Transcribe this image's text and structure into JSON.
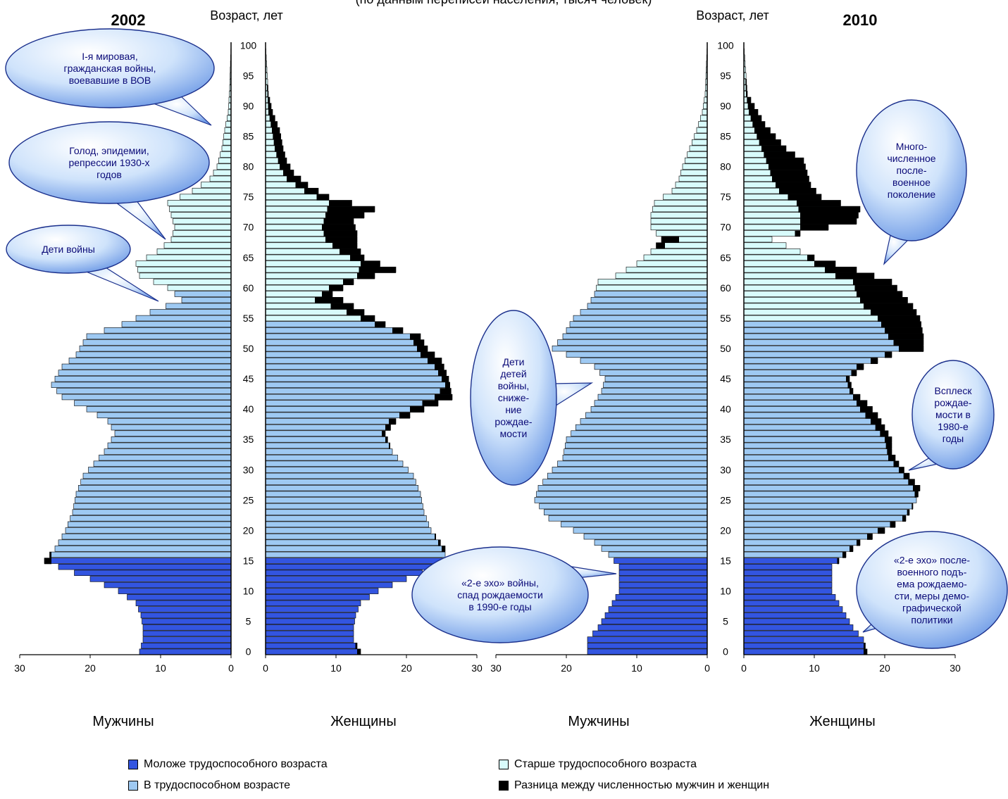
{
  "header": {
    "cropped_title": "(по данным переписей населения, тысяч человек)",
    "year_2002": "2002",
    "year_2010": "2010",
    "age_axis_label": "Возраст, лет"
  },
  "axis_labels": {
    "men": "Мужчины",
    "women": "Женщины"
  },
  "legend": [
    {
      "label": "Моложе трудоспособного возраста",
      "color": "#3355e0"
    },
    {
      "label": "Старше трудоспособного возраста",
      "color": "#d8fbfb"
    },
    {
      "label": "В трудоспособном возрасте",
      "color": "#9ec9f2"
    },
    {
      "label": "Разница между численностью мужчин и женщин",
      "color": "#000000"
    }
  ],
  "callouts": [
    {
      "lines": [
        "I-я мировая,",
        "гражданская войны,",
        "воевавшие в ВОВ"
      ]
    },
    {
      "lines": [
        "Голод, эпидемии,",
        "репрессии 1930-х",
        "годов"
      ]
    },
    {
      "lines": [
        "Дети войны"
      ]
    },
    {
      "lines": [
        "Дети",
        "детей",
        "войны,",
        "сниже-",
        "ние",
        "рождае-",
        "мости"
      ]
    },
    {
      "lines": [
        "«2-е эхо» войны,",
        "спад рождаемости",
        "в 1990-е годы"
      ]
    },
    {
      "lines": [
        "Много-",
        "численное",
        "после-",
        "военное",
        "поколение"
      ]
    },
    {
      "lines": [
        "Всплеск",
        "рождае-",
        "мости в",
        "1980-е",
        "годы"
      ]
    },
    {
      "lines": [
        "«2-е эхо» после-",
        "военного подъ-",
        "ема рождаемо-",
        "сти, меры демо-",
        "графической",
        "политики"
      ]
    }
  ],
  "chart_data": [
    {
      "type": "bar",
      "title": "2002",
      "ylabel": "Возраст, лет",
      "xlim": [
        0,
        30
      ],
      "ylim": [
        0,
        100
      ],
      "y_ticks": [
        0,
        5,
        10,
        15,
        20,
        25,
        30,
        35,
        40,
        45,
        50,
        55,
        60,
        65,
        70,
        75,
        80,
        85,
        90,
        95,
        100
      ],
      "x_ticks": [
        30,
        20,
        10,
        0
      ],
      "women_x_ticks": [
        0,
        10,
        20,
        30
      ],
      "working_age": {
        "men": [
          16,
          59
        ],
        "women": [
          16,
          54
        ]
      },
      "men_anchors": [
        [
          0,
          13
        ],
        [
          2,
          12.5
        ],
        [
          4,
          12.5
        ],
        [
          6,
          12.8
        ],
        [
          8,
          13.5
        ],
        [
          10,
          16
        ],
        [
          12,
          20
        ],
        [
          14,
          24.5
        ],
        [
          15,
          26.5
        ],
        [
          17,
          25
        ],
        [
          20,
          23.5
        ],
        [
          23,
          22.5
        ],
        [
          26,
          22
        ],
        [
          29,
          21
        ],
        [
          31,
          19.5
        ],
        [
          33,
          18
        ],
        [
          36,
          16.5
        ],
        [
          38,
          17.5
        ],
        [
          40,
          20.5
        ],
        [
          42,
          24
        ],
        [
          44,
          25.5
        ],
        [
          47,
          24
        ],
        [
          49,
          22
        ],
        [
          52,
          20.5
        ],
        [
          54,
          15.5
        ],
        [
          56,
          11.5
        ],
        [
          58,
          7
        ],
        [
          60,
          9
        ],
        [
          62,
          13
        ],
        [
          64,
          13.5
        ],
        [
          66,
          10.5
        ],
        [
          68,
          8.5
        ],
        [
          70,
          8
        ],
        [
          72,
          8.5
        ],
        [
          74,
          9
        ],
        [
          76,
          5.5
        ],
        [
          78,
          3
        ],
        [
          80,
          2
        ],
        [
          83,
          1.3
        ],
        [
          86,
          0.9
        ],
        [
          89,
          0.4
        ],
        [
          93,
          0.2
        ],
        [
          100,
          0
        ]
      ],
      "women_anchors": [
        [
          0,
          13.5
        ],
        [
          2,
          12.5
        ],
        [
          4,
          12.5
        ],
        [
          6,
          12.8
        ],
        [
          8,
          13.5
        ],
        [
          10,
          16
        ],
        [
          12,
          20
        ],
        [
          14,
          24.5
        ],
        [
          15,
          25.5
        ],
        [
          17,
          25.5
        ],
        [
          20,
          23.5
        ],
        [
          23,
          22.5
        ],
        [
          26,
          22
        ],
        [
          29,
          21
        ],
        [
          31,
          19.5
        ],
        [
          33,
          18
        ],
        [
          36,
          17
        ],
        [
          38,
          18.5
        ],
        [
          40,
          22.5
        ],
        [
          42,
          26.5
        ],
        [
          45,
          26
        ],
        [
          48,
          25
        ],
        [
          50,
          23
        ],
        [
          52,
          22
        ],
        [
          53,
          19.5
        ],
        [
          54,
          17
        ],
        [
          55,
          15.5
        ],
        [
          57,
          12.5
        ],
        [
          59,
          9.5
        ],
        [
          61,
          12.5
        ],
        [
          63,
          18.5
        ],
        [
          65,
          14
        ],
        [
          67,
          13
        ],
        [
          69,
          13
        ],
        [
          71,
          12.5
        ],
        [
          73,
          15.5
        ],
        [
          75,
          9
        ],
        [
          77,
          6
        ],
        [
          79,
          4
        ],
        [
          81,
          3
        ],
        [
          83,
          2.5
        ],
        [
          86,
          2
        ],
        [
          89,
          1
        ],
        [
          92,
          0.4
        ],
        [
          100,
          0
        ]
      ]
    },
    {
      "type": "bar",
      "title": "2010",
      "ylabel": "Возраст, лет",
      "xlim": [
        0,
        30
      ],
      "ylim": [
        0,
        100
      ],
      "y_ticks": [
        0,
        5,
        10,
        15,
        20,
        25,
        30,
        35,
        40,
        45,
        50,
        55,
        60,
        65,
        70,
        75,
        80,
        85,
        90,
        95,
        100
      ],
      "x_ticks": [
        30,
        20,
        10,
        0
      ],
      "women_x_ticks": [
        0,
        10,
        20,
        30
      ],
      "working_age": {
        "men": [
          16,
          59
        ],
        "women": [
          16,
          54
        ]
      },
      "men_anchors": [
        [
          0,
          17
        ],
        [
          2,
          17
        ],
        [
          4,
          15.5
        ],
        [
          6,
          14.5
        ],
        [
          8,
          13.5
        ],
        [
          10,
          12.5
        ],
        [
          12,
          12.5
        ],
        [
          14,
          12.5
        ],
        [
          16,
          14
        ],
        [
          18,
          16
        ],
        [
          20,
          19
        ],
        [
          22,
          22.5
        ],
        [
          25,
          24.5
        ],
        [
          27,
          24
        ],
        [
          30,
          22
        ],
        [
          32,
          20.5
        ],
        [
          35,
          20
        ],
        [
          38,
          18
        ],
        [
          40,
          16.5
        ],
        [
          43,
          15
        ],
        [
          45,
          14.5
        ],
        [
          47,
          16
        ],
        [
          49,
          20
        ],
        [
          50,
          22
        ],
        [
          52,
          20.5
        ],
        [
          55,
          19
        ],
        [
          57,
          17
        ],
        [
          59,
          16
        ],
        [
          61,
          15.5
        ],
        [
          62,
          13
        ],
        [
          64,
          10
        ],
        [
          66,
          8
        ],
        [
          68,
          6.5
        ],
        [
          70,
          8
        ],
        [
          72,
          8
        ],
        [
          74,
          7.5
        ],
        [
          76,
          5
        ],
        [
          78,
          4
        ],
        [
          80,
          3.5
        ],
        [
          83,
          2.5
        ],
        [
          86,
          1.5
        ],
        [
          89,
          0.7
        ],
        [
          92,
          0.3
        ],
        [
          100,
          0
        ]
      ],
      "women_anchors": [
        [
          0,
          17.5
        ],
        [
          2,
          17
        ],
        [
          4,
          15.5
        ],
        [
          6,
          14.5
        ],
        [
          8,
          13.5
        ],
        [
          10,
          12.5
        ],
        [
          12,
          12.5
        ],
        [
          14,
          12.5
        ],
        [
          16,
          14.5
        ],
        [
          18,
          16.5
        ],
        [
          20,
          20
        ],
        [
          22,
          23
        ],
        [
          25,
          24.5
        ],
        [
          27,
          25
        ],
        [
          29,
          23.5
        ],
        [
          31,
          22
        ],
        [
          33,
          21
        ],
        [
          35,
          21
        ],
        [
          37,
          20
        ],
        [
          39,
          19
        ],
        [
          41,
          17.5
        ],
        [
          43,
          15.5
        ],
        [
          45,
          15
        ],
        [
          47,
          17
        ],
        [
          49,
          21
        ],
        [
          50,
          25.5
        ],
        [
          52,
          25.5
        ],
        [
          55,
          25
        ],
        [
          57,
          24
        ],
        [
          59,
          22.5
        ],
        [
          61,
          21
        ],
        [
          63,
          16
        ],
        [
          65,
          10
        ],
        [
          67,
          6
        ],
        [
          68,
          4
        ],
        [
          70,
          12
        ],
        [
          71,
          16
        ],
        [
          73,
          16.5
        ],
        [
          75,
          11
        ],
        [
          77,
          9.5
        ],
        [
          79,
          9
        ],
        [
          81,
          8.5
        ],
        [
          83,
          6
        ],
        [
          85,
          4.5
        ],
        [
          87,
          3
        ],
        [
          89,
          2
        ],
        [
          92,
          0.5
        ],
        [
          100,
          0
        ]
      ]
    }
  ]
}
